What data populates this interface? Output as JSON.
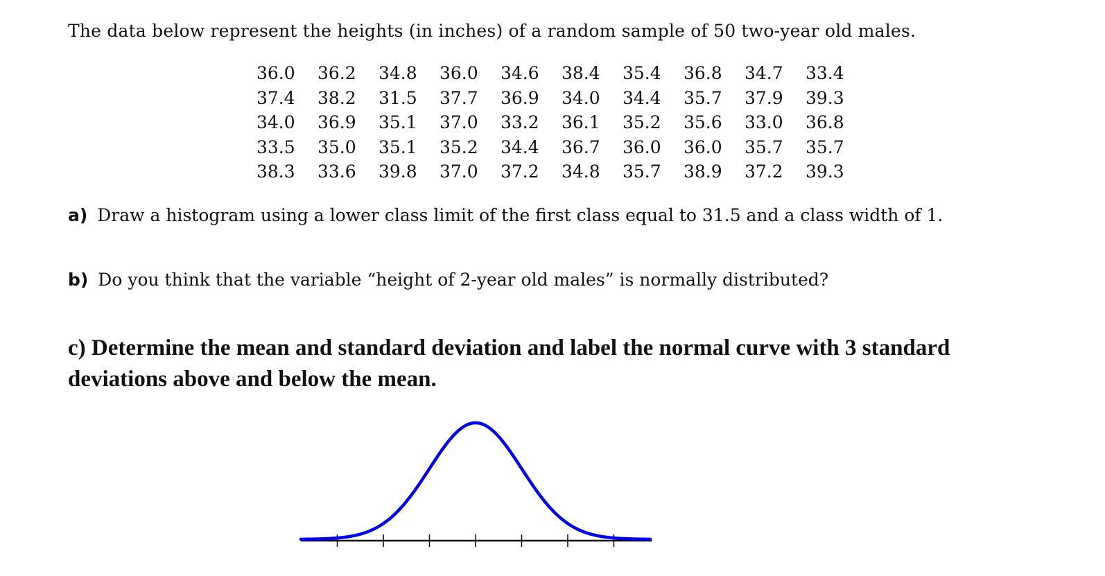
{
  "intro": "The data below represent the heights (in inches) of a random sample of 50 two-year old males.",
  "data_rows": [
    [
      "36.0",
      "36.2",
      "34.8",
      "36.0",
      "34.6",
      "38.4",
      "35.4",
      "36.8",
      "34.7",
      "33.4"
    ],
    [
      "37.4",
      "38.2",
      "31.5",
      "37.7",
      "36.9",
      "34.0",
      "34.4",
      "35.7",
      "37.9",
      "39.3"
    ],
    [
      "34.0",
      "36.9",
      "35.1",
      "37.0",
      "33.2",
      "36.1",
      "35.2",
      "35.6",
      "33.0",
      "36.8"
    ],
    [
      "33.5",
      "35.0",
      "35.1",
      "35.2",
      "34.4",
      "36.7",
      "36.0",
      "36.0",
      "35.7",
      "35.7"
    ],
    [
      "38.3",
      "33.6",
      "39.8",
      "37.0",
      "37.2",
      "34.8",
      "35.7",
      "38.9",
      "37.2",
      "39.3"
    ]
  ],
  "question_a": {
    "label": "a)",
    "text": "Draw a histogram using a lower class limit of the first class equal to 31.5 and a class width of 1."
  },
  "question_b": {
    "label": "b)",
    "text": "Do you think that the variable “height of 2-year old males” is normally distributed?"
  },
  "question_c": {
    "line1": "c) Determine the mean and standard deviation  and label the normal curve  with 3 standard",
    "line2": "deviations above and below the mean."
  },
  "normal_curve": {
    "curve_color": "#0000ee",
    "axis_color": "#000000",
    "tick_count": 7
  }
}
